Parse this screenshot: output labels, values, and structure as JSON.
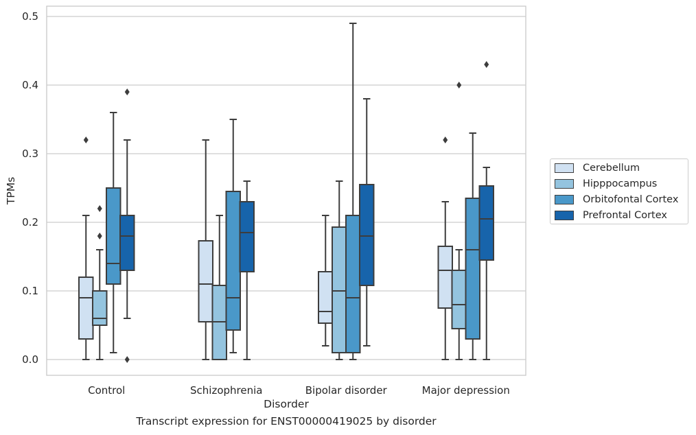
{
  "caption": "Transcript expression for ENST00000419025 by disorder",
  "chart_data": {
    "type": "box",
    "xlabel": "Disorder",
    "ylabel": "TPMs",
    "ylim": [
      -0.023,
      0.515
    ],
    "yticks": [
      "0.0",
      "0.1",
      "0.2",
      "0.3",
      "0.4",
      "0.5"
    ],
    "grid": true,
    "legend_placement": "right",
    "categories": [
      "Control",
      "Schizophrenia",
      "Bipolar disorder",
      "Major depression"
    ],
    "series": [
      {
        "name": "Cerebellum",
        "color": "#d0e1f2",
        "boxes": [
          {
            "whislo": 0.0,
            "q1": 0.03,
            "med": 0.09,
            "q3": 0.12,
            "whishi": 0.21,
            "fliers": [
              0.32
            ]
          },
          {
            "whislo": 0.0,
            "q1": 0.055,
            "med": 0.11,
            "q3": 0.173,
            "whishi": 0.32,
            "fliers": []
          },
          {
            "whislo": 0.02,
            "q1": 0.053,
            "med": 0.07,
            "q3": 0.128,
            "whishi": 0.21,
            "fliers": []
          },
          {
            "whislo": 0.0,
            "q1": 0.075,
            "med": 0.13,
            "q3": 0.165,
            "whishi": 0.23,
            "fliers": [
              0.32
            ]
          }
        ]
      },
      {
        "name": "Hipppocampus",
        "color": "#94c4df",
        "boxes": [
          {
            "whislo": 0.0,
            "q1": 0.05,
            "med": 0.06,
            "q3": 0.1,
            "whishi": 0.16,
            "fliers": [
              0.18,
              0.22
            ]
          },
          {
            "whislo": 0.0,
            "q1": 0.0,
            "med": 0.055,
            "q3": 0.108,
            "whishi": 0.21,
            "fliers": []
          },
          {
            "whislo": 0.0,
            "q1": 0.01,
            "med": 0.1,
            "q3": 0.193,
            "whishi": 0.26,
            "fliers": []
          },
          {
            "whislo": 0.0,
            "q1": 0.045,
            "med": 0.08,
            "q3": 0.13,
            "whishi": 0.16,
            "fliers": [
              0.4
            ]
          }
        ]
      },
      {
        "name": "Orbitofontal Cortex",
        "color": "#4a98c9",
        "boxes": [
          {
            "whislo": 0.01,
            "q1": 0.11,
            "med": 0.14,
            "q3": 0.25,
            "whishi": 0.36,
            "fliers": []
          },
          {
            "whislo": 0.01,
            "q1": 0.043,
            "med": 0.09,
            "q3": 0.245,
            "whishi": 0.35,
            "fliers": []
          },
          {
            "whislo": 0.0,
            "q1": 0.01,
            "med": 0.09,
            "q3": 0.21,
            "whishi": 0.49,
            "fliers": []
          },
          {
            "whislo": 0.0,
            "q1": 0.03,
            "med": 0.16,
            "q3": 0.235,
            "whishi": 0.33,
            "fliers": []
          }
        ]
      },
      {
        "name": "Prefrontal Cortex",
        "color": "#1764ab",
        "boxes": [
          {
            "whislo": 0.06,
            "q1": 0.13,
            "med": 0.18,
            "q3": 0.21,
            "whishi": 0.32,
            "fliers": [
              0.0,
              0.39
            ]
          },
          {
            "whislo": 0.0,
            "q1": 0.128,
            "med": 0.185,
            "q3": 0.23,
            "whishi": 0.26,
            "fliers": []
          },
          {
            "whislo": 0.02,
            "q1": 0.108,
            "med": 0.18,
            "q3": 0.255,
            "whishi": 0.38,
            "fliers": []
          },
          {
            "whislo": 0.0,
            "q1": 0.145,
            "med": 0.205,
            "q3": 0.253,
            "whishi": 0.28,
            "fliers": [
              0.43
            ]
          }
        ]
      }
    ]
  }
}
